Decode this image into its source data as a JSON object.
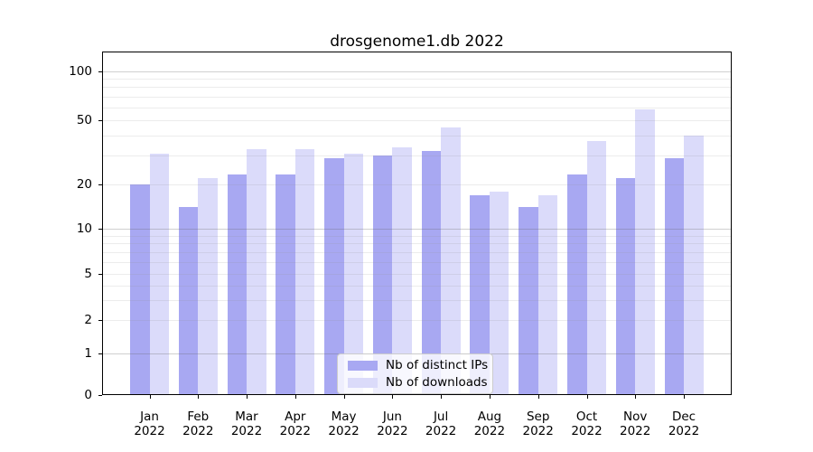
{
  "chart_data": {
    "type": "bar",
    "title": "drosgenome1.db 2022",
    "year_label": "2022",
    "categories": [
      "Jan",
      "Feb",
      "Mar",
      "Apr",
      "May",
      "Jun",
      "Jul",
      "Aug",
      "Sep",
      "Oct",
      "Nov",
      "Dec"
    ],
    "series": [
      {
        "name": "Nb of distinct IPs",
        "color": "#a8a8f2",
        "values": [
          20,
          14,
          23,
          23,
          29,
          30,
          32,
          17,
          14,
          23,
          22,
          29
        ]
      },
      {
        "name": "Nb of downloads",
        "color": "#dbdbfa",
        "values": [
          31,
          22,
          33,
          33,
          31,
          34,
          45,
          18,
          17,
          37,
          58,
          40
        ]
      }
    ],
    "yticks": [
      0,
      1,
      2,
      5,
      10,
      20,
      50,
      100
    ],
    "xlabel": "",
    "ylabel": "",
    "yscale": "log above 1, linear 0-1",
    "ylim": [
      0,
      130
    ],
    "grid": true,
    "legend_position": "lower-center",
    "colors": {
      "axis": "#000000",
      "text": "#000000",
      "background": "#ffffff",
      "major_grid": "#c6c6c6",
      "minor_grid": "#e9e9e9"
    }
  }
}
